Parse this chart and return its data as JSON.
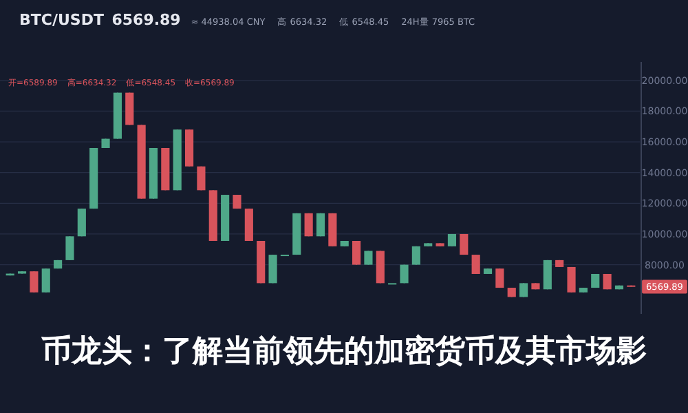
{
  "chart_data": {
    "type": "candlestick",
    "title": "币龙头：了解当前领先的加密货币及其市场影",
    "annotations": [
      "BTC/USDT",
      "6569.89",
      "≈ 44938.04 CNY",
      "高 6634.32",
      "低 6548.45",
      "24H量 7965 BTC",
      "开=6589.89",
      "高=6634.32",
      "低=6548.45",
      "收=6569.89",
      {
        "text": "6569.89",
        "y": 6569.89
      }
    ],
    "categories": [
      null,
      null,
      null,
      null,
      null,
      null,
      null,
      null,
      null,
      null,
      null,
      null,
      null,
      null,
      null,
      null,
      null,
      null,
      null,
      null,
      null,
      null,
      null,
      null,
      null,
      null,
      null,
      null,
      null,
      null,
      null,
      null,
      null,
      null,
      null,
      null,
      null,
      null,
      null,
      null,
      null,
      null,
      null,
      null,
      null,
      null,
      null,
      null,
      null,
      null,
      null,
      null,
      null
    ],
    "ohlc": [
      [
        7300,
        7420,
        7300,
        7420
      ],
      [
        7420,
        7570,
        7420,
        7570
      ],
      [
        7570,
        7570,
        6200,
        6200
      ],
      [
        6200,
        7750,
        6200,
        7750
      ],
      [
        7750,
        8300,
        7750,
        8300
      ],
      [
        8300,
        9850,
        8300,
        9850
      ],
      [
        9850,
        11650,
        9850,
        11650
      ],
      [
        11650,
        15600,
        11650,
        15600
      ],
      [
        15600,
        16200,
        15600,
        16200
      ],
      [
        16200,
        19200,
        16200,
        19200
      ],
      [
        19200,
        19200,
        17100,
        17100
      ],
      [
        17100,
        17100,
        12300,
        12300
      ],
      [
        12300,
        15600,
        12300,
        15600
      ],
      [
        15600,
        15600,
        12850,
        12850
      ],
      [
        12850,
        16800,
        12850,
        16800
      ],
      [
        16800,
        16800,
        14400,
        14400
      ],
      [
        14400,
        14400,
        12850,
        12850
      ],
      [
        12850,
        12850,
        9550,
        9550
      ],
      [
        9550,
        12550,
        9550,
        12550
      ],
      [
        12550,
        12550,
        11650,
        11650
      ],
      [
        11650,
        11650,
        9550,
        9550
      ],
      [
        9550,
        9550,
        6800,
        6800
      ],
      [
        6800,
        8650,
        6800,
        8650
      ],
      [
        8650,
        8650,
        8650,
        8650
      ],
      [
        8650,
        11350,
        8650,
        11350
      ],
      [
        11350,
        11350,
        9850,
        9850
      ],
      [
        9850,
        11350,
        9850,
        11350
      ],
      [
        11350,
        11350,
        9200,
        9200
      ],
      [
        9200,
        9550,
        9200,
        9550
      ],
      [
        9550,
        9550,
        8000,
        8000
      ],
      [
        8000,
        8900,
        8000,
        8900
      ],
      [
        8900,
        8900,
        6800,
        6800
      ],
      [
        6800,
        6800,
        6800,
        6800
      ],
      [
        6800,
        8000,
        6800,
        8000
      ],
      [
        8000,
        9200,
        8000,
        9200
      ],
      [
        9200,
        9400,
        9200,
        9400
      ],
      [
        9400,
        9400,
        9200,
        9200
      ],
      [
        9200,
        10000,
        9200,
        10000
      ],
      [
        10000,
        10000,
        8650,
        8650
      ],
      [
        8650,
        8650,
        7400,
        7400
      ],
      [
        7400,
        7750,
        7400,
        7750
      ],
      [
        7750,
        7750,
        6500,
        6500
      ],
      [
        6500,
        6500,
        5900,
        5900
      ],
      [
        5900,
        6800,
        5900,
        6800
      ],
      [
        6800,
        6800,
        6400,
        6400
      ],
      [
        6400,
        8300,
        6400,
        8300
      ],
      [
        8300,
        8300,
        7850,
        7850
      ],
      [
        7850,
        7850,
        6200,
        6200
      ],
      [
        6200,
        6500,
        6200,
        6500
      ],
      [
        6500,
        7400,
        6500,
        7400
      ],
      [
        7400,
        7400,
        6400,
        6400
      ],
      [
        6400,
        6650,
        6400,
        6650
      ],
      [
        6650,
        6650,
        6570,
        6570
      ]
    ],
    "colors": [
      "#4fa889",
      "#4fa889",
      "#d8545c",
      "#4fa889",
      "#4fa889",
      "#4fa889",
      "#4fa889",
      "#4fa889",
      "#4fa889",
      "#4fa889",
      "#d8545c",
      "#d8545c",
      "#4fa889",
      "#d8545c",
      "#4fa889",
      "#d8545c",
      "#d8545c",
      "#d8545c",
      "#4fa889",
      "#d8545c",
      "#d8545c",
      "#d8545c",
      "#4fa889",
      "#4fa889",
      "#4fa889",
      "#d8545c",
      "#4fa889",
      "#d8545c",
      "#4fa889",
      "#d8545c",
      "#4fa889",
      "#d8545c",
      "#4fa889",
      "#4fa889",
      "#4fa889",
      "#4fa889",
      "#d8545c",
      "#4fa889",
      "#d8545c",
      "#d8545c",
      "#4fa889",
      "#d8545c",
      "#d8545c",
      "#4fa889",
      "#d8545c",
      "#4fa889",
      "#d8545c",
      "#d8545c",
      "#4fa889",
      "#4fa889",
      "#d8545c",
      "#4fa889",
      "#d8545c"
    ],
    "ylim": [
      4800,
      21200
    ],
    "grid": "y",
    "yticks": [
      {
        "value": 8000,
        "label": "8000.00"
      },
      {
        "value": 10000,
        "label": "10000.00"
      },
      {
        "value": 12000,
        "label": "12000.00"
      },
      {
        "value": 14000,
        "label": "14000.00"
      },
      {
        "value": 16000,
        "label": "16000.00"
      },
      {
        "value": 18000,
        "label": "18000.00"
      },
      {
        "value": 20000,
        "label": "20000.00"
      }
    ]
  }
}
